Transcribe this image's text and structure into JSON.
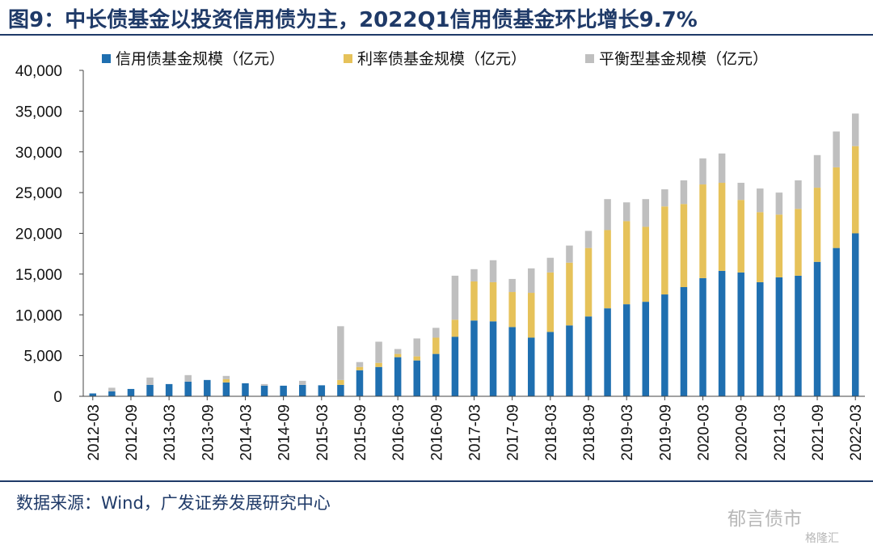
{
  "header": {
    "title": "图9：中长债基金以投资信用债为主，2022Q1信用债基金环比增长9.7%"
  },
  "footer": {
    "source": "数据来源：Wind，广发证券发展研究中心",
    "watermark": "郁言债市",
    "watermark_sub": "格隆汇"
  },
  "colors": {
    "credit": "#1f6fb0",
    "rate": "#e6c25a",
    "balanced": "#bfbfbf",
    "accent": "#1f3a68"
  },
  "chart_data": {
    "type": "bar",
    "stacked": true,
    "title": "",
    "xlabel": "",
    "ylabel": "",
    "ylim": [
      0,
      40000
    ],
    "y_ticks": [
      "0",
      "5,000",
      "10,000",
      "15,000",
      "20,000",
      "25,000",
      "30,000",
      "35,000",
      "40,000"
    ],
    "y_tick_values": [
      0,
      5000,
      10000,
      15000,
      20000,
      25000,
      30000,
      35000,
      40000
    ],
    "legend_position": "top",
    "grid": false,
    "x_tick_labels": [
      "2012-03",
      "2012-09",
      "2013-03",
      "2013-09",
      "2014-03",
      "2014-09",
      "2015-03",
      "2015-09",
      "2016-03",
      "2016-09",
      "2017-03",
      "2017-09",
      "2018-03",
      "2018-09",
      "2019-03",
      "2019-09",
      "2020-03",
      "2020-09",
      "2021-03",
      "2021-09",
      "2022-03"
    ],
    "categories": [
      "2012-03",
      "2012-06",
      "2012-09",
      "2012-12",
      "2013-03",
      "2013-06",
      "2013-09",
      "2013-12",
      "2014-03",
      "2014-06",
      "2014-09",
      "2014-12",
      "2015-03",
      "2015-06",
      "2015-09",
      "2015-12",
      "2016-03",
      "2016-06",
      "2016-09",
      "2016-12",
      "2017-03",
      "2017-06",
      "2017-09",
      "2017-12",
      "2018-03",
      "2018-06",
      "2018-09",
      "2018-12",
      "2019-03",
      "2019-06",
      "2019-09",
      "2019-12",
      "2020-03",
      "2020-06",
      "2020-09",
      "2020-12",
      "2021-03",
      "2021-06",
      "2021-09",
      "2021-12",
      "2022-03"
    ],
    "series": [
      {
        "name": "信用债基金规模（亿元）",
        "color": "#1f6fb0",
        "values": [
          350,
          600,
          900,
          1400,
          1500,
          1800,
          2000,
          1700,
          1600,
          1300,
          1300,
          1400,
          1350,
          1400,
          3200,
          3600,
          4800,
          4400,
          5200,
          7300,
          9300,
          9200,
          8500,
          7200,
          7900,
          8700,
          9800,
          10800,
          11300,
          11600,
          12500,
          13400,
          14500,
          15400,
          15200,
          14000,
          14600,
          14800,
          16500,
          18200,
          20000
        ]
      },
      {
        "name": "利率债基金规模（亿元）",
        "color": "#e6c25a",
        "values": [
          0,
          0,
          0,
          0,
          0,
          0,
          0,
          400,
          0,
          0,
          0,
          0,
          0,
          600,
          400,
          500,
          400,
          500,
          2000,
          2100,
          4800,
          4800,
          4300,
          5500,
          7300,
          7700,
          8400,
          9600,
          10200,
          9200,
          10800,
          10200,
          11500,
          10800,
          8900,
          8600,
          7700,
          8200,
          9100,
          9900,
          10700
        ]
      },
      {
        "name": "平衡型基金规模（亿元）",
        "color": "#bfbfbf",
        "values": [
          0,
          450,
          0,
          900,
          0,
          800,
          0,
          400,
          0,
          200,
          0,
          500,
          0,
          6600,
          600,
          2600,
          600,
          2200,
          1200,
          5400,
          1500,
          2700,
          1600,
          3000,
          1800,
          2100,
          2100,
          3800,
          2300,
          3400,
          2100,
          2900,
          3200,
          3600,
          2100,
          2900,
          2700,
          3500,
          4000,
          4400,
          4000
        ]
      }
    ]
  }
}
